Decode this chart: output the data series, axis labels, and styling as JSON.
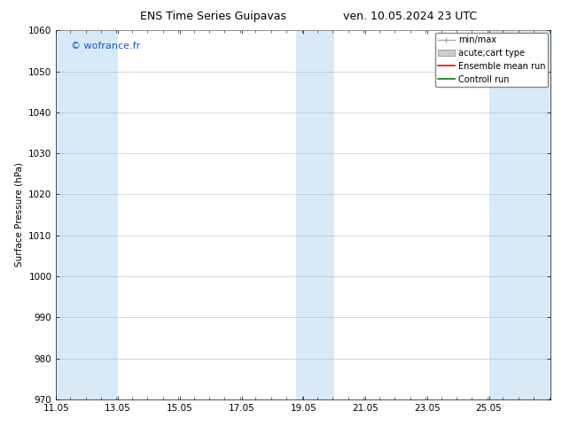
{
  "title_left": "ENS Time Series Guipavas",
  "title_right": "ven. 10.05.2024 23 UTC",
  "ylabel": "Surface Pressure (hPa)",
  "ylim": [
    970,
    1060
  ],
  "yticks": [
    970,
    980,
    990,
    1000,
    1010,
    1020,
    1030,
    1040,
    1050,
    1060
  ],
  "xlim": [
    11.05,
    27.05
  ],
  "xticks": [
    11.05,
    13.05,
    15.05,
    17.05,
    19.05,
    21.05,
    23.05,
    25.05
  ],
  "xlabel_labels": [
    "11.05",
    "13.05",
    "15.05",
    "17.05",
    "19.05",
    "21.05",
    "23.05",
    "25.05"
  ],
  "watermark": "© wofrance.fr",
  "watermark_color": "#1a55cc",
  "bg_color": "#ffffff",
  "plot_bg_color": "#ffffff",
  "shaded_bands": [
    {
      "x_start": 11.05,
      "x_end": 13.05,
      "color": "#d8eaf8"
    },
    {
      "x_start": 18.8,
      "x_end": 20.05,
      "color": "#d8eaf8"
    },
    {
      "x_start": 25.05,
      "x_end": 27.05,
      "color": "#d8eaf8"
    }
  ],
  "legend_entries": [
    {
      "label": "min/max",
      "type": "errorbar",
      "color": "#aaaaaa"
    },
    {
      "label": "acute;cart type",
      "type": "bar",
      "color": "#cccccc"
    },
    {
      "label": "Ensemble mean run",
      "type": "line",
      "color": "#ff0000"
    },
    {
      "label": "Controll run",
      "type": "line",
      "color": "#008000"
    }
  ],
  "font_size_title": 9,
  "font_size_axis": 7.5,
  "font_size_legend": 7,
  "font_size_watermark": 8,
  "grid_color": "#bbbbbb",
  "grid_linewidth": 0.4,
  "tick_direction": "in",
  "tick_right": true,
  "tick_top": true
}
